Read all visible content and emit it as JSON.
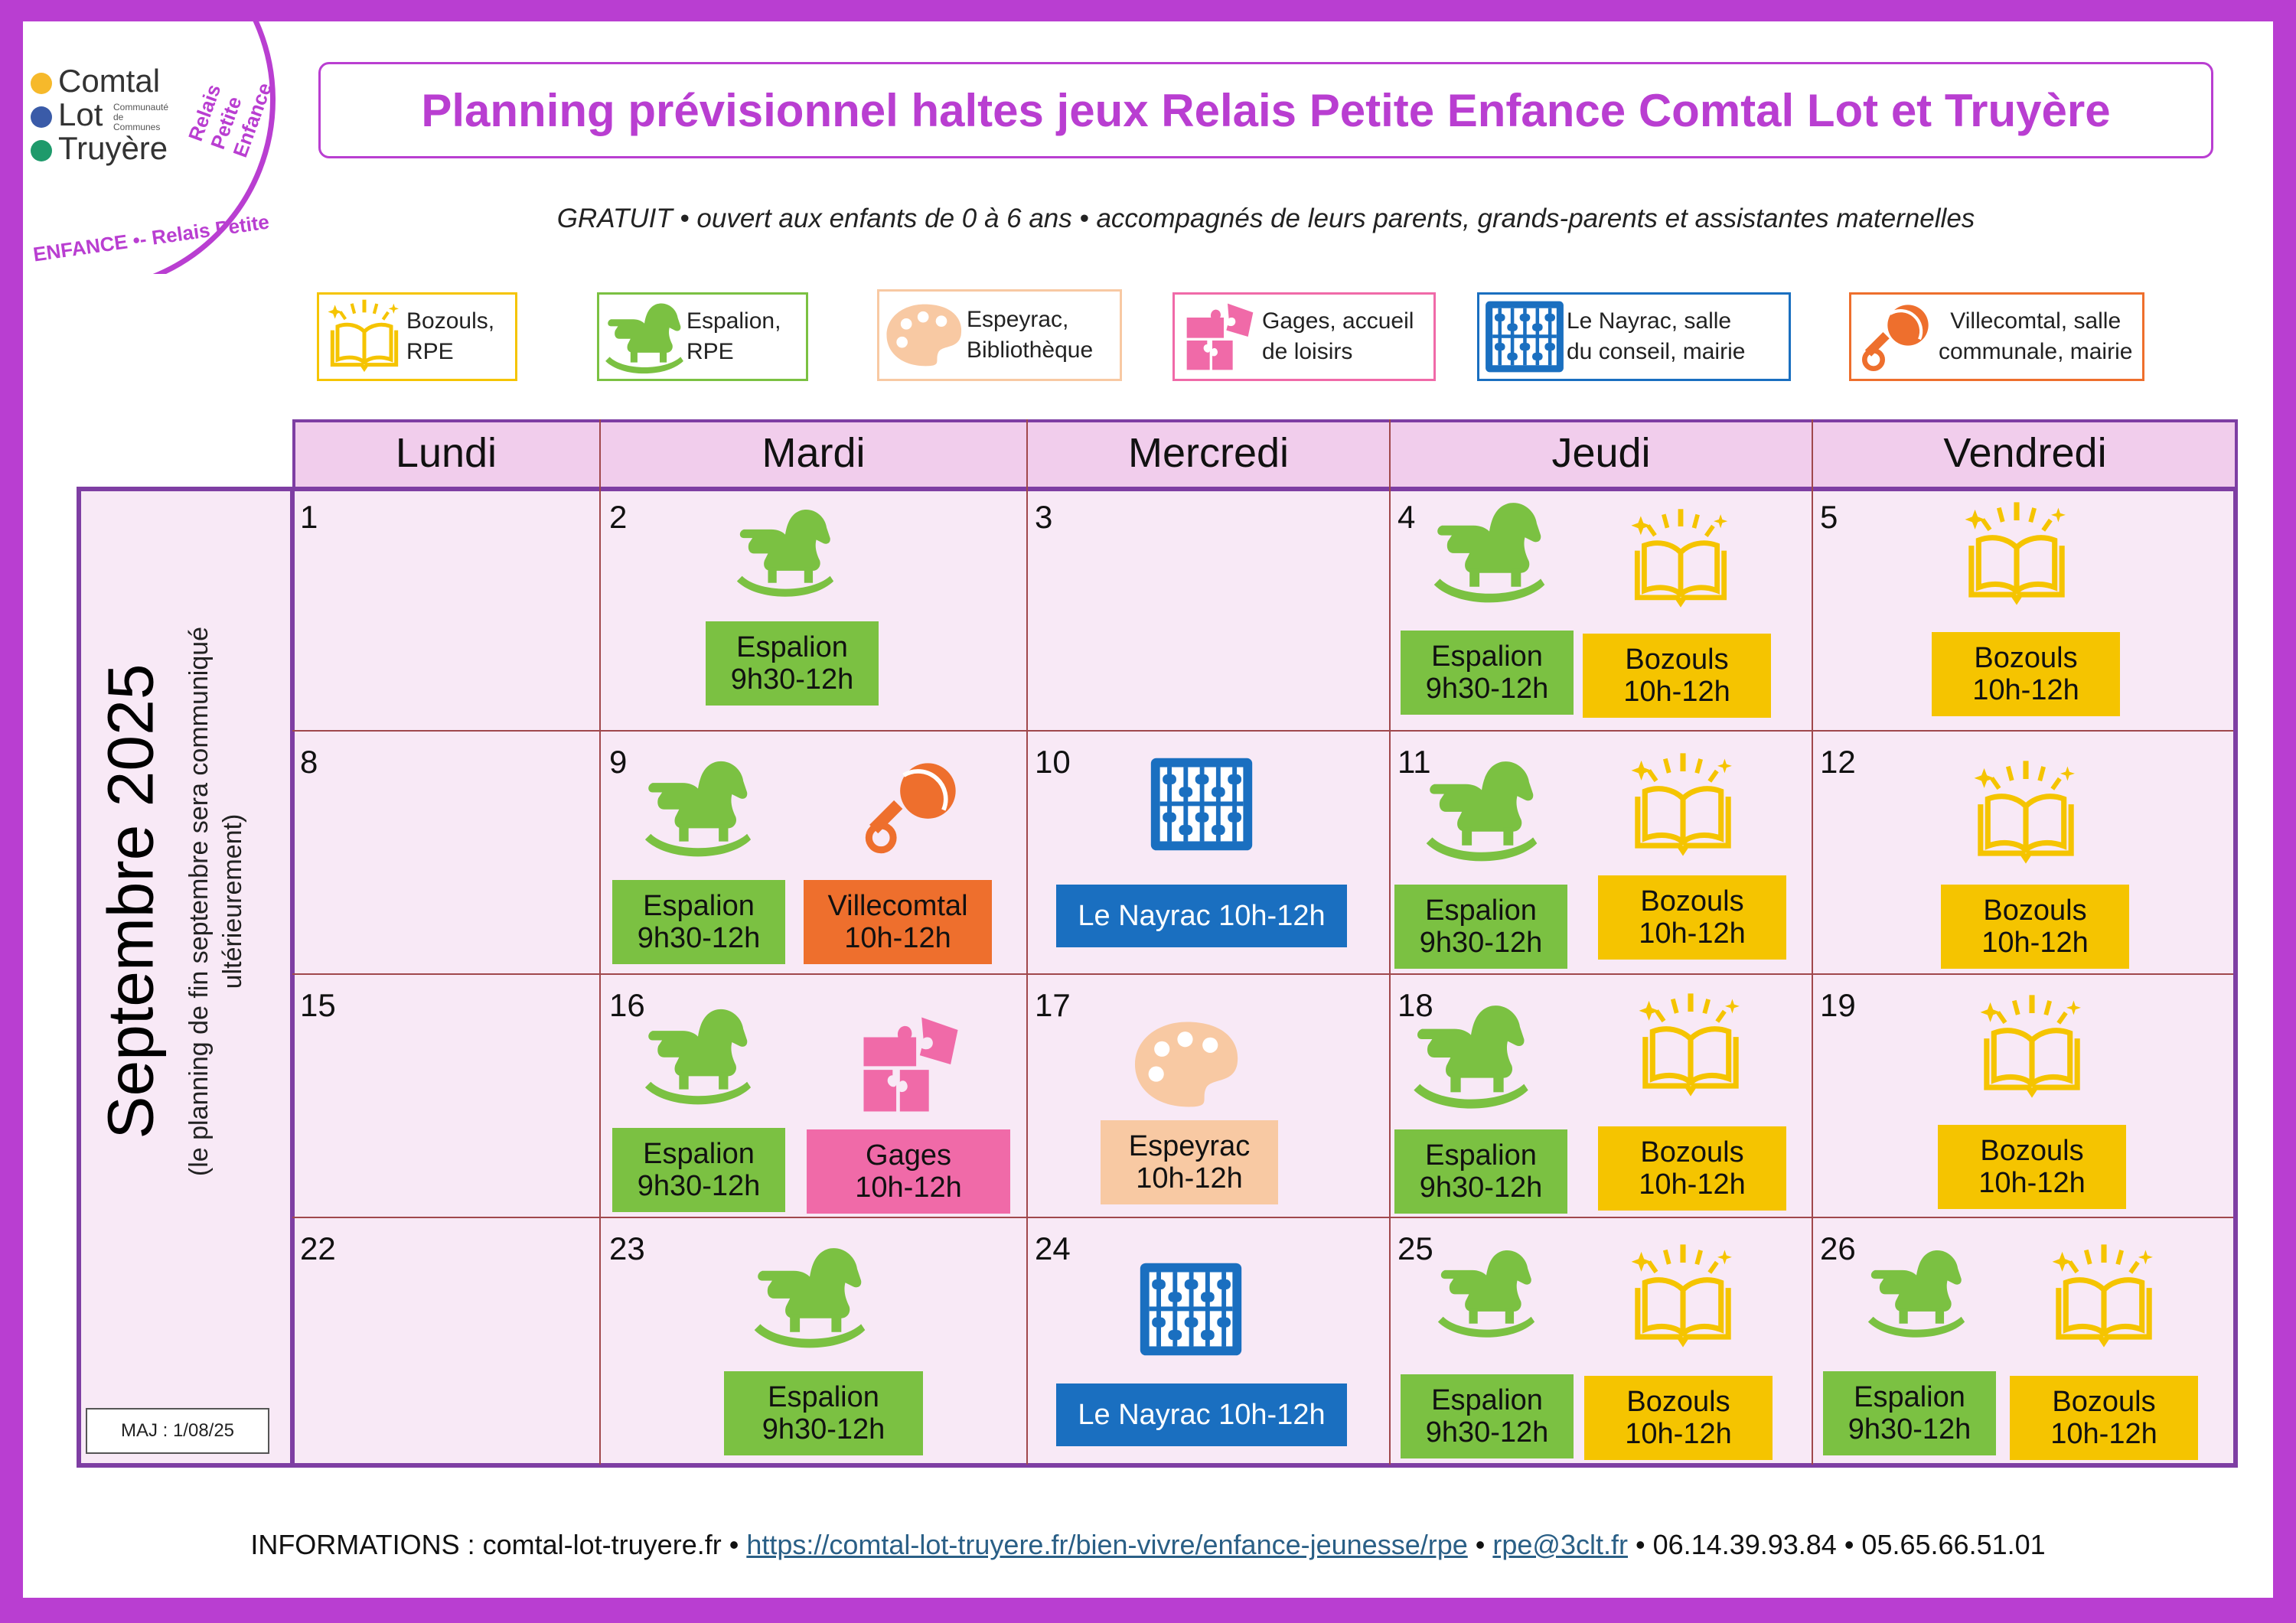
{
  "logo": {
    "line1": "Comtal",
    "line2": "Lot",
    "line3": "Truyère",
    "small": "Communauté de Communes",
    "arc_right": "Relais Petite Enfance",
    "arc_bottom": "ENFANCE •- Relais Petite",
    "dot_colors": [
      "#f6b92b",
      "#3a5ba8",
      "#1e9a6b"
    ]
  },
  "title": "Planning prévisionnel haltes jeux Relais Petite Enfance Comtal Lot et Truyère",
  "subtitle": "GRATUIT • ouvert aux enfants de 0 à 6 ans • accompagnés de leurs parents, grands-parents et assistantes maternelles",
  "legend": [
    {
      "line1": "Bozouls,",
      "line2": "RPE",
      "icon": "book-icon",
      "color": "#f5c400"
    },
    {
      "line1": "Espalion,",
      "line2": "RPE",
      "icon": "rocking-horse-icon",
      "color": "#7bc142"
    },
    {
      "line1": "Espeyrac,",
      "line2": "Bibliothèque",
      "icon": "palette-icon",
      "color": "#f8c9a3"
    },
    {
      "line1": "Gages, accueil",
      "line2": "de loisirs",
      "icon": "puzzle-icon",
      "color": "#f06aa8"
    },
    {
      "line1": "Le Nayrac, salle",
      "line2": "du conseil, mairie",
      "icon": "abacus-icon",
      "color": "#1a6fc0"
    },
    {
      "line1": "Villecomtal, salle",
      "line2": "communale, mairie",
      "icon": "rattle-icon",
      "color": "#ee6f2d"
    }
  ],
  "days": [
    "Lundi",
    "Mardi",
    "Mercredi",
    "Jeudi",
    "Vendredi"
  ],
  "month": {
    "title": "Septembre 2025",
    "note_line1": "(le planning de fin septembre sera communiqué",
    "note_line2": "ultérieurement)"
  },
  "maj": "MAJ : 1/08/25",
  "weeks": [
    [
      "1",
      "2",
      "3",
      "4",
      "5"
    ],
    [
      "8",
      "9",
      "10",
      "11",
      "12"
    ],
    [
      "15",
      "16",
      "17",
      "18",
      "19"
    ],
    [
      "22",
      "23",
      "24",
      "25",
      "26"
    ]
  ],
  "events": {
    "espalion": {
      "name": "Espalion",
      "time": "9h30-12h",
      "color": "#7bc142"
    },
    "bozouls": {
      "name": "Bozouls",
      "time": "10h-12h",
      "color": "#f5c400"
    },
    "villecomtal": {
      "name": "Villecomtal",
      "time": "10h-12h",
      "color": "#ee6f2d"
    },
    "gages": {
      "name": "Gages",
      "time": "10h-12h",
      "color": "#f06aa8"
    },
    "espeyrac": {
      "name": "Espeyrac",
      "time": "10h-12h",
      "color": "#f8c9a3"
    },
    "nayrac": {
      "label": "Le Nayrac 10h-12h",
      "color": "#1a6fc0"
    }
  },
  "footer": {
    "prefix": "INFORMATIONS : comtal-lot-truyere.fr •",
    "url": "https://comtal-lot-truyere.fr/bien-vivre/enfance-jeunesse/rpe",
    "sep1": "•",
    "email": "rpe@3clt.fr",
    "phones": "• 06.14.39.93.84 • 05.65.66.51.01"
  }
}
